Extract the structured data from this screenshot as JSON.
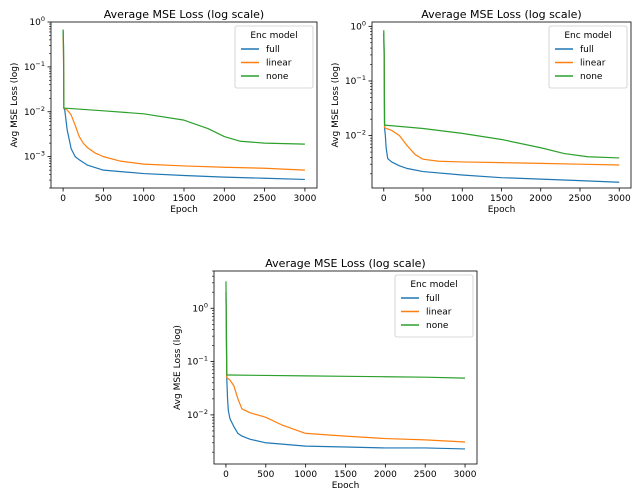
{
  "chart_data": [
    {
      "type": "line",
      "title": "Average MSE Loss (log scale)",
      "xlabel": "Epoch",
      "ylabel": "Avg MSE Loss (log)",
      "yscale": "log",
      "xlim": [
        -150,
        3150
      ],
      "ylim": [
        0.0002,
        1.0
      ],
      "xticks": [
        0,
        500,
        1000,
        1500,
        2000,
        2500,
        3000
      ],
      "yticks": [
        {
          "value": 0.001,
          "base": "10",
          "exp": "−3"
        },
        {
          "value": 0.01,
          "base": "10",
          "exp": "−2"
        },
        {
          "value": 0.1,
          "base": "10",
          "exp": "−1"
        },
        {
          "value": 1,
          "base": "10",
          "exp": "0"
        }
      ],
      "legend": {
        "title": "Enc model",
        "position": "top-right"
      },
      "series": [
        {
          "name": "full",
          "color": "#1f77b4",
          "x": [
            0,
            5,
            10,
            20,
            30,
            50,
            100,
            150,
            200,
            300,
            500,
            1000,
            1500,
            2000,
            2500,
            3000
          ],
          "y": [
            0.65,
            0.3,
            0.012,
            0.011,
            0.008,
            0.004,
            0.0015,
            0.001,
            0.00085,
            0.00065,
            0.0005,
            0.00042,
            0.00038,
            0.00035,
            0.00033,
            0.00031
          ]
        },
        {
          "name": "linear",
          "color": "#ff7f0e",
          "x": [
            0,
            5,
            10,
            30,
            50,
            100,
            150,
            200,
            250,
            300,
            400,
            500,
            700,
            1000,
            1500,
            2000,
            2500,
            3000
          ],
          "y": [
            0.5,
            0.2,
            0.012,
            0.0115,
            0.011,
            0.0085,
            0.005,
            0.0028,
            0.002,
            0.0016,
            0.0012,
            0.001,
            0.0008,
            0.00068,
            0.00062,
            0.00058,
            0.00055,
            0.0005
          ]
        },
        {
          "name": "none",
          "color": "#2ca02c",
          "x": [
            0,
            5,
            10,
            30,
            500,
            1000,
            1500,
            1800,
            2000,
            2200,
            2500,
            3000
          ],
          "y": [
            0.68,
            0.3,
            0.012,
            0.012,
            0.0105,
            0.009,
            0.0065,
            0.0042,
            0.0028,
            0.0022,
            0.002,
            0.0019
          ]
        }
      ]
    },
    {
      "type": "line",
      "title": "Average MSE Loss (log scale)",
      "xlabel": "Epoch",
      "ylabel": "Avg MSE Loss (log)",
      "yscale": "log",
      "xlim": [
        -150,
        3150
      ],
      "ylim": [
        0.0011,
        1.2
      ],
      "xticks": [
        0,
        500,
        1000,
        1500,
        2000,
        2500,
        3000
      ],
      "yticks": [
        {
          "value": 0.01,
          "base": "10",
          "exp": "−2"
        },
        {
          "value": 0.1,
          "base": "10",
          "exp": "−1"
        },
        {
          "value": 1,
          "base": "10",
          "exp": "0"
        }
      ],
      "legend": {
        "title": "Enc model",
        "position": "top-right"
      },
      "series": [
        {
          "name": "full",
          "color": "#1f77b4",
          "x": [
            0,
            5,
            10,
            20,
            30,
            50,
            100,
            200,
            300,
            500,
            1000,
            1500,
            2000,
            2500,
            3000
          ],
          "y": [
            0.75,
            0.3,
            0.014,
            0.01,
            0.006,
            0.0038,
            0.0033,
            0.0028,
            0.0025,
            0.0022,
            0.0019,
            0.0017,
            0.0016,
            0.0015,
            0.0014
          ]
        },
        {
          "name": "linear",
          "color": "#ff7f0e",
          "x": [
            0,
            5,
            10,
            30,
            100,
            200,
            300,
            400,
            500,
            700,
            1000,
            1500,
            2000,
            2500,
            3000
          ],
          "y": [
            0.6,
            0.25,
            0.014,
            0.0135,
            0.0125,
            0.01,
            0.0065,
            0.0045,
            0.0037,
            0.0034,
            0.0033,
            0.0032,
            0.0031,
            0.003,
            0.0029
          ]
        },
        {
          "name": "none",
          "color": "#2ca02c",
          "x": [
            0,
            5,
            10,
            30,
            500,
            1000,
            1500,
            2000,
            2300,
            2600,
            3000
          ],
          "y": [
            0.85,
            0.3,
            0.0155,
            0.0155,
            0.0135,
            0.011,
            0.0085,
            0.006,
            0.0047,
            0.0041,
            0.0039
          ]
        }
      ]
    },
    {
      "type": "line",
      "title": "Average MSE Loss (log scale)",
      "xlabel": "Epoch",
      "ylabel": "Avg MSE Loss (log)",
      "yscale": "log",
      "xlim": [
        -150,
        3150
      ],
      "ylim": [
        0.0012,
        5.0
      ],
      "xticks": [
        0,
        500,
        1000,
        1500,
        2000,
        2500,
        3000
      ],
      "yticks": [
        {
          "value": 0.01,
          "base": "10",
          "exp": "−2"
        },
        {
          "value": 0.1,
          "base": "10",
          "exp": "−1"
        },
        {
          "value": 1,
          "base": "10",
          "exp": "0"
        }
      ],
      "legend": {
        "title": "Enc model",
        "position": "top-right"
      },
      "series": [
        {
          "name": "full",
          "color": "#1f77b4",
          "x": [
            0,
            5,
            10,
            20,
            30,
            50,
            100,
            150,
            200,
            300,
            500,
            1000,
            1500,
            2000,
            2500,
            3000
          ],
          "y": [
            2.0,
            0.5,
            0.05,
            0.02,
            0.012,
            0.0085,
            0.006,
            0.0045,
            0.004,
            0.0035,
            0.003,
            0.0026,
            0.0025,
            0.0024,
            0.0024,
            0.0023
          ]
        },
        {
          "name": "linear",
          "color": "#ff7f0e",
          "x": [
            0,
            5,
            10,
            50,
            100,
            150,
            200,
            300,
            500,
            700,
            1000,
            1500,
            2000,
            2500,
            3000
          ],
          "y": [
            1.6,
            0.3,
            0.05,
            0.045,
            0.035,
            0.02,
            0.013,
            0.011,
            0.009,
            0.0065,
            0.0045,
            0.004,
            0.0036,
            0.0034,
            0.0031
          ]
        },
        {
          "name": "none",
          "color": "#2ca02c",
          "x": [
            0,
            5,
            10,
            30,
            500,
            1000,
            1500,
            2000,
            2500,
            3000
          ],
          "y": [
            3.2,
            0.5,
            0.056,
            0.056,
            0.055,
            0.054,
            0.053,
            0.052,
            0.051,
            0.049
          ]
        }
      ]
    }
  ]
}
